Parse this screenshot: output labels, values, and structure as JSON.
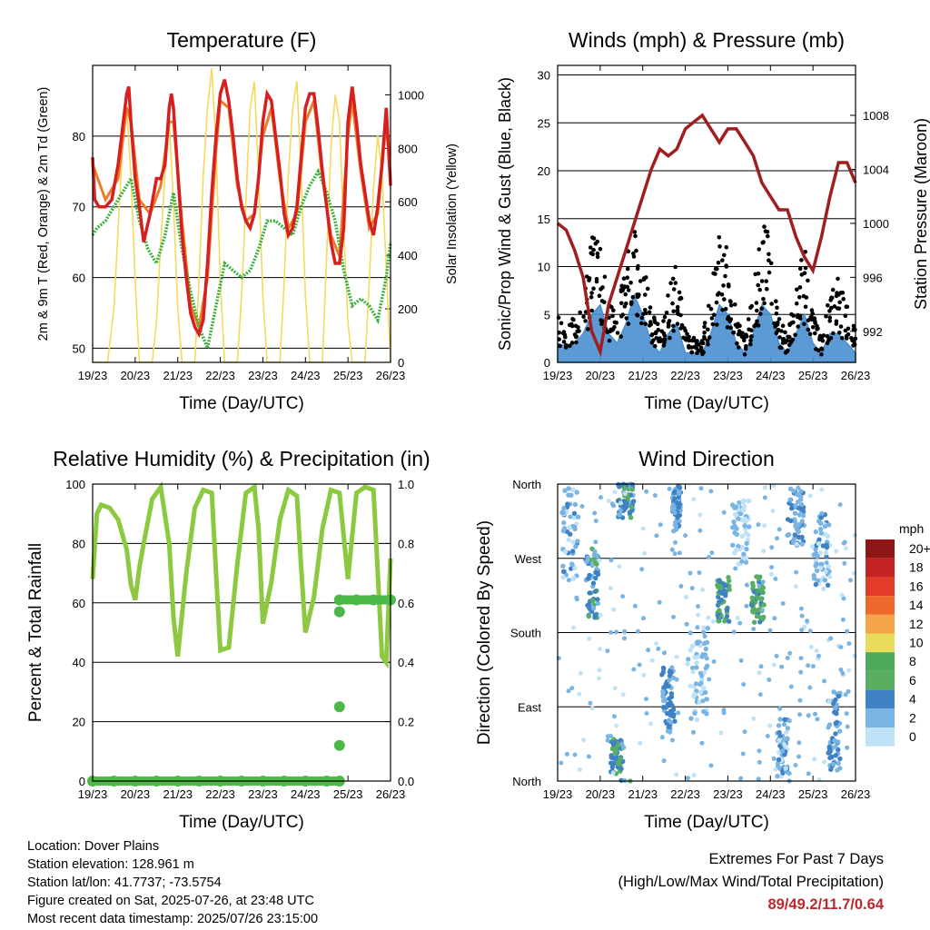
{
  "info": {
    "location": "Location: Dover Plains",
    "elevation": "Station elevation: 128.961 m",
    "latlon": "Station lat/lon: 41.7737; -73.5754",
    "created": "Figure created on Sat, 2025-07-26, at 23:48 UTC",
    "timestamp": "Most recent data timestamp: 2025/07/26 23:15:00"
  },
  "extremes": {
    "title": "Extremes For Past 7 Days",
    "subtitle": "(High/Low/Max Wind/Total Precipitation)",
    "values": "89/49.2/11.7/0.64"
  },
  "colors": {
    "temp2m": "#d62020",
    "temp9m": "#f07c28",
    "dewpoint": "#3cb040",
    "insolation": "#f5d95a",
    "wind": "#4a8fd0",
    "gust": "#000000",
    "pressure": "#a01e1e",
    "rh": "#8cc840",
    "precip": "#4cb848"
  },
  "chart_data": [
    {
      "type": "line",
      "title": "Temperature (F)",
      "xlabel": "Time (Day/UTC)",
      "ylabel": "2m & 9m T (Red, Orange) & 2m Td (Green)",
      "y2label": "Solar Insolation (Yellow)",
      "xticks": [
        "19/23",
        "20/23",
        "21/23",
        "22/23",
        "23/23",
        "24/23",
        "25/23",
        "26/23"
      ],
      "xlim": [
        0,
        7
      ],
      "ylim": [
        48,
        90
      ],
      "yticks": [
        50,
        60,
        70,
        80
      ],
      "y2lim": [
        0,
        1110
      ],
      "y2ticks": [
        0,
        200,
        400,
        600,
        800,
        1000
      ],
      "grid": "horizontal",
      "series": [
        {
          "key": "t2m",
          "x": [
            0,
            0.05,
            0.15,
            0.3,
            0.45,
            0.6,
            0.7,
            0.8,
            0.85,
            0.9,
            1.0,
            1.1,
            1.2,
            1.35,
            1.5,
            1.6,
            1.7,
            1.8,
            1.85,
            1.9,
            2.0,
            2.1,
            2.2,
            2.3,
            2.4,
            2.5,
            2.6,
            2.7,
            2.8,
            2.9,
            3.0,
            3.1,
            3.2,
            3.3,
            3.4,
            3.5,
            3.6,
            3.7,
            3.8,
            3.9,
            4.0,
            4.1,
            4.2,
            4.3,
            4.4,
            4.5,
            4.6,
            4.7,
            4.8,
            4.9,
            5.0,
            5.1,
            5.2,
            5.3,
            5.4,
            5.5,
            5.6,
            5.7,
            5.8,
            5.9,
            6.0,
            6.1,
            6.2,
            6.3,
            6.4,
            6.5,
            6.6,
            6.7,
            6.8,
            6.9,
            7.0
          ],
          "y": [
            77,
            71,
            70,
            70,
            71,
            76,
            81,
            86,
            87,
            82,
            74,
            70,
            65,
            69,
            74,
            74,
            76,
            84,
            86,
            84,
            75,
            66,
            60,
            55,
            53,
            52,
            54,
            62,
            72,
            80,
            86,
            88,
            85,
            80,
            74,
            70,
            68,
            67,
            69,
            74,
            82,
            86,
            85,
            80,
            75,
            69,
            66,
            67,
            70,
            77,
            84,
            86,
            86,
            81,
            75,
            70,
            65,
            62,
            62,
            67,
            82,
            87,
            82,
            76,
            72,
            68,
            66,
            70,
            76,
            84,
            73
          ]
        },
        {
          "key": "t9m",
          "x": [
            0,
            0.3,
            0.6,
            0.8,
            0.9,
            1.1,
            1.35,
            1.6,
            1.8,
            1.9,
            2.1,
            2.3,
            2.5,
            2.7,
            2.9,
            3.0,
            3.2,
            3.4,
            3.6,
            3.8,
            4.0,
            4.2,
            4.4,
            4.6,
            4.8,
            5.0,
            5.2,
            5.4,
            5.6,
            5.8,
            6.0,
            6.1,
            6.3,
            6.5,
            6.7,
            6.9,
            7.0
          ],
          "y": [
            76,
            71,
            74,
            84,
            82,
            71,
            69,
            73,
            82,
            82,
            68,
            56,
            53,
            60,
            78,
            85,
            84,
            73,
            68,
            69,
            80,
            84,
            74,
            67,
            69,
            82,
            85,
            74,
            66,
            63,
            80,
            85,
            75,
            67,
            69,
            82,
            74
          ]
        },
        {
          "key": "td2m",
          "x": [
            0,
            0.1,
            0.3,
            0.5,
            0.7,
            0.9,
            1.0,
            1.1,
            1.3,
            1.5,
            1.7,
            1.9,
            2.1,
            2.3,
            2.5,
            2.7,
            2.9,
            3.1,
            3.3,
            3.5,
            3.7,
            3.9,
            4.1,
            4.3,
            4.5,
            4.7,
            4.9,
            5.1,
            5.3,
            5.5,
            5.7,
            5.9,
            6.1,
            6.3,
            6.5,
            6.7,
            6.9,
            7.0
          ],
          "y": [
            66,
            67,
            68,
            70,
            72,
            74,
            71,
            68,
            64,
            62,
            66,
            72,
            64,
            58,
            53,
            50,
            56,
            62,
            61,
            60,
            61,
            64,
            68,
            68,
            67,
            66,
            70,
            73,
            75,
            72,
            68,
            61,
            56,
            57,
            56,
            54,
            60,
            65
          ]
        },
        {
          "key": "solar",
          "x": [
            0,
            0.35,
            0.5,
            0.6,
            0.7,
            0.8,
            0.9,
            1.0,
            1.1,
            1.4,
            1.5,
            1.6,
            1.7,
            1.8,
            1.9,
            2.0,
            2.1,
            2.4,
            2.5,
            2.6,
            2.7,
            2.8,
            2.9,
            3.0,
            3.1,
            3.4,
            3.5,
            3.6,
            3.7,
            3.8,
            3.9,
            4.0,
            4.1,
            4.4,
            4.5,
            4.6,
            4.7,
            4.8,
            4.9,
            5.0,
            5.1,
            5.4,
            5.5,
            5.6,
            5.7,
            5.8,
            5.9,
            6.0,
            6.1,
            6.4,
            6.5,
            6.6,
            6.7,
            6.8,
            6.9,
            7.0
          ],
          "y": [
            0,
            0,
            200,
            500,
            800,
            950,
            700,
            300,
            0,
            0,
            150,
            450,
            700,
            900,
            600,
            200,
            0,
            0,
            300,
            700,
            950,
            1100,
            800,
            300,
            0,
            0,
            250,
            600,
            950,
            1050,
            700,
            250,
            0,
            0,
            300,
            700,
            950,
            1050,
            700,
            250,
            0,
            0,
            400,
            800,
            1000,
            900,
            500,
            150,
            0,
            0,
            300,
            650,
            850,
            700,
            350,
            0
          ]
        }
      ]
    },
    {
      "type": "line",
      "title": "Winds (mph) & Pressure (mb)",
      "xlabel": "Time (Day/UTC)",
      "ylabel": "Sonic/Prop Wind & Gust (Blue, Black)",
      "y2label": "Station Pressure (Maroon)",
      "xticks": [
        "19/23",
        "20/23",
        "21/23",
        "22/23",
        "23/23",
        "24/23",
        "25/23",
        "26/23"
      ],
      "xlim": [
        0,
        7
      ],
      "ylim": [
        0,
        31
      ],
      "yticks": [
        0,
        5,
        10,
        15,
        20,
        25,
        30
      ],
      "y2lim": [
        989.7,
        1011.7
      ],
      "y2ticks": [
        992,
        996,
        1000,
        1004,
        1008
      ],
      "grid": "horizontal",
      "series": [
        {
          "key": "wind",
          "x": [
            0,
            0.3,
            0.6,
            0.8,
            1.0,
            1.2,
            1.4,
            1.6,
            1.8,
            2.0,
            2.2,
            2.4,
            2.6,
            2.8,
            3.0,
            3.2,
            3.4,
            3.6,
            3.8,
            4.0,
            4.2,
            4.4,
            4.6,
            4.8,
            5.0,
            5.2,
            5.4,
            5.6,
            5.8,
            6.0,
            6.2,
            6.4,
            6.6,
            6.8,
            7.0
          ],
          "y": [
            2,
            1.5,
            3,
            5,
            6,
            3,
            2,
            4,
            7,
            5,
            2,
            1,
            3,
            4,
            1,
            1,
            1,
            3,
            6,
            5,
            2,
            1,
            3,
            6,
            5,
            2,
            1,
            3,
            5,
            2,
            1,
            3,
            3,
            2,
            1
          ]
        },
        {
          "key": "gust",
          "x": [
            0,
            0.3,
            0.6,
            0.8,
            1.0,
            1.2,
            1.4,
            1.6,
            1.8,
            2.0,
            2.2,
            2.4,
            2.6,
            2.8,
            3.0,
            3.2,
            3.4,
            3.6,
            3.8,
            4.0,
            4.2,
            4.4,
            4.6,
            4.8,
            5.0,
            5.2,
            5.4,
            5.6,
            5.8,
            6.0,
            6.2,
            6.4,
            6.6,
            6.8,
            7.0
          ],
          "y": [
            4,
            3,
            6,
            10,
            11,
            5,
            4,
            8,
            13,
            9,
            4,
            3,
            6,
            8,
            3,
            2,
            2,
            6,
            11,
            9,
            4,
            2,
            6,
            12,
            10,
            4,
            2,
            6,
            10,
            4,
            2,
            6,
            7,
            5,
            3
          ]
        },
        {
          "key": "pressure",
          "x": [
            0,
            0.2,
            0.4,
            0.6,
            0.8,
            1.0,
            1.2,
            1.4,
            1.6,
            1.8,
            2.0,
            2.2,
            2.4,
            2.6,
            2.8,
            3.0,
            3.2,
            3.4,
            3.6,
            3.8,
            4.0,
            4.2,
            4.4,
            4.6,
            4.8,
            5.0,
            5.2,
            5.4,
            5.6,
            5.8,
            6.0,
            6.2,
            6.4,
            6.6,
            6.8,
            7.0
          ],
          "y": [
            1000,
            999.5,
            998,
            996,
            992,
            990.5,
            994,
            996,
            998,
            1000,
            1002,
            1004,
            1005.5,
            1005,
            1005.5,
            1007,
            1007.5,
            1008,
            1007,
            1006,
            1007,
            1007,
            1006,
            1005,
            1003,
            1002,
            1001,
            1001,
            999,
            997.5,
            996.5,
            999,
            1002,
            1004.5,
            1004.5,
            1003
          ]
        }
      ]
    },
    {
      "type": "line",
      "title": "Relative Humidity (%) & Precipitation (in)",
      "xlabel": "Time (Day/UTC)",
      "ylabel": "Percent & Total Rainfall",
      "xticks": [
        "19/23",
        "20/23",
        "21/23",
        "22/23",
        "23/23",
        "24/23",
        "25/23",
        "26/23"
      ],
      "xlim": [
        0,
        7
      ],
      "ylim": [
        0,
        100
      ],
      "yticks": [
        0,
        20,
        40,
        60,
        80,
        100
      ],
      "y2lim": [
        0,
        1.0
      ],
      "y2ticks": [
        "0.0",
        "0.2",
        "0.4",
        "0.6",
        "0.8",
        "1.0"
      ],
      "grid": "horizontal",
      "series": [
        {
          "key": "rh",
          "x": [
            0,
            0.1,
            0.2,
            0.4,
            0.6,
            0.8,
            0.9,
            1.0,
            1.1,
            1.2,
            1.4,
            1.6,
            1.8,
            1.9,
            2.0,
            2.2,
            2.4,
            2.6,
            2.8,
            2.9,
            3.0,
            3.2,
            3.4,
            3.6,
            3.8,
            3.9,
            4.0,
            4.2,
            4.4,
            4.6,
            4.8,
            4.9,
            5.0,
            5.2,
            5.4,
            5.6,
            5.8,
            6.0,
            6.2,
            6.4,
            6.6,
            6.8,
            6.9,
            7.0
          ],
          "y": [
            68,
            90,
            93,
            92,
            88,
            78,
            66,
            61,
            72,
            80,
            95,
            99,
            80,
            55,
            42,
            70,
            92,
            98,
            97,
            70,
            44,
            45,
            73,
            97,
            99,
            85,
            53,
            67,
            88,
            98,
            96,
            72,
            50,
            62,
            85,
            98,
            97,
            68,
            97,
            99,
            98,
            42,
            40,
            75
          ]
        },
        {
          "key": "precip",
          "x": [
            0,
            0.5,
            1,
            1.5,
            2,
            2.5,
            3,
            3.5,
            4,
            4.5,
            5,
            5.5,
            5.8,
            5.8,
            5.8,
            5.8,
            5.8,
            6.2,
            6.6,
            7.0
          ],
          "y": [
            0,
            0,
            0,
            0,
            0,
            0,
            0,
            0,
            0,
            0,
            0,
            0,
            0,
            0.12,
            0.25,
            0.57,
            0.61,
            0.61,
            0.61,
            0.61
          ]
        }
      ]
    },
    {
      "type": "scatter",
      "title": "Wind Direction",
      "xlabel": "Time (Day/UTC)",
      "ylabel": "Direction (Colored By Speed)",
      "xticks": [
        "19/23",
        "20/23",
        "21/23",
        "22/23",
        "23/23",
        "24/23",
        "25/23",
        "26/23"
      ],
      "xlim": [
        0,
        7
      ],
      "ylim": [
        0,
        360
      ],
      "yticks": [
        "North",
        "East",
        "South",
        "West",
        "North"
      ],
      "grid": "horizontal",
      "legend": {
        "title": "mph",
        "labels": [
          "20+",
          "18",
          "16",
          "14",
          "12",
          "10",
          "8",
          "6",
          "4",
          "2",
          "0"
        ],
        "colors": [
          "#8e1616",
          "#c42222",
          "#e23b2a",
          "#f0692c",
          "#f5a447",
          "#e8dd5a",
          "#4daa5a",
          "#5aae62",
          "#3f82c4",
          "#7ab4e2",
          "#c0e2f6"
        ]
      },
      "clusters": [
        {
          "x": 0.3,
          "y": 300,
          "spread": [
            0.4,
            80
          ],
          "speed": 2
        },
        {
          "x": 0.8,
          "y": 240,
          "spread": [
            0.3,
            60
          ],
          "speed": 4
        },
        {
          "x": 1.6,
          "y": 340,
          "spread": [
            0.4,
            30
          ],
          "speed": 4
        },
        {
          "x": 1.4,
          "y": 30,
          "spread": [
            0.3,
            30
          ],
          "speed": 5
        },
        {
          "x": 2.6,
          "y": 100,
          "spread": [
            0.3,
            60
          ],
          "speed": 3
        },
        {
          "x": 2.8,
          "y": 330,
          "spread": [
            0.2,
            40
          ],
          "speed": 3
        },
        {
          "x": 3.3,
          "y": 130,
          "spread": [
            0.5,
            80
          ],
          "speed": 1
        },
        {
          "x": 3.9,
          "y": 220,
          "spread": [
            0.3,
            40
          ],
          "speed": 5
        },
        {
          "x": 4.7,
          "y": 220,
          "spread": [
            0.3,
            40
          ],
          "speed": 6
        },
        {
          "x": 4.3,
          "y": 300,
          "spread": [
            0.4,
            60
          ],
          "speed": 1
        },
        {
          "x": 5.6,
          "y": 320,
          "spread": [
            0.4,
            50
          ],
          "speed": 3
        },
        {
          "x": 5.3,
          "y": 40,
          "spread": [
            0.3,
            50
          ],
          "speed": 2
        },
        {
          "x": 6.5,
          "y": 60,
          "spread": [
            0.3,
            70
          ],
          "speed": 3
        },
        {
          "x": 6.2,
          "y": 280,
          "spread": [
            0.4,
            70
          ],
          "speed": 2
        }
      ]
    }
  ]
}
